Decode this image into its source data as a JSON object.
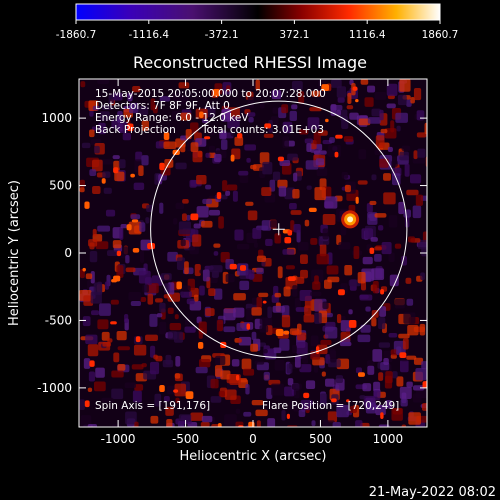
{
  "colorbar": {
    "ticks": [
      "-1860.7",
      "-1116.4",
      "-372.1",
      "372.1",
      "1116.4",
      "1860.7"
    ],
    "min": -1860.7,
    "max": 1860.7
  },
  "plot": {
    "title": "Reconstructed RHESSI Image",
    "xlabel": "Heliocentric X (arcsec)",
    "ylabel": "Heliocentric Y (arcsec)",
    "xticks": [
      "-1000",
      "-500",
      "0",
      "500",
      "1000"
    ],
    "yticks": [
      "1000",
      "500",
      "0",
      "-500",
      "-1000"
    ],
    "xlim": [
      -1290,
      1290
    ],
    "ylim": [
      -1290,
      1290
    ]
  },
  "info": {
    "line1": "15-May-2015 20:05:00.000 to 20:07:28.000",
    "line2": "Detectors: 7F 8F 9F, Att 0",
    "line3": "Energy Range: 6.0 - 12.0 keV",
    "line4_left": "Back Projection",
    "line4_right": "Total counts: 3.01E+03",
    "spin_axis": "Spin Axis = [191,176]",
    "flare_position": "Flare Position = [720,249]"
  },
  "solar_disk": {
    "center": [
      191,
      176
    ],
    "radius_arcsec": 950
  },
  "footer": {
    "timestamp": "21-May-2022 08:02"
  },
  "colors": {
    "disk": "#ffffff",
    "background": "#000000"
  }
}
